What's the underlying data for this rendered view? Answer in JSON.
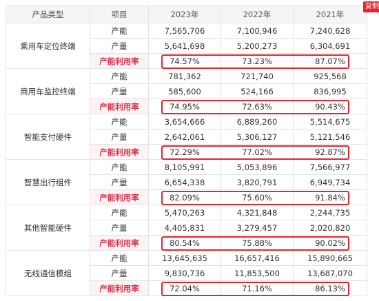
{
  "button": "复制",
  "table": {
    "header": [
      "产品类型",
      "项目",
      "2023年",
      "2022年",
      "2021年"
    ],
    "groups": [
      {
        "name": "乘用车定位终端",
        "rows": [
          [
            "产能",
            "7,565,706",
            "7,100,946",
            "7,240,628"
          ],
          [
            "产量",
            "5,641,698",
            "5,200,273",
            "6,304,691"
          ],
          [
            "产能利用率",
            "74.57%",
            "73.23%",
            "87.07%"
          ]
        ]
      },
      {
        "name": "商用车监控终端",
        "rows": [
          [
            "产能",
            "781,362",
            "721,740",
            "925,568"
          ],
          [
            "产量",
            "585,600",
            "524,166",
            "836,995"
          ],
          [
            "产能利用率",
            "74.95%",
            "72.63%",
            "90.43%"
          ]
        ]
      },
      {
        "name": "智能支付硬件",
        "rows": [
          [
            "产能",
            "3,654,666",
            "6,889,260",
            "5,514,675"
          ],
          [
            "产量",
            "2,642,061",
            "5,306,127",
            "5,121,546"
          ],
          [
            "产能利用率",
            "72.29%",
            "77.02%",
            "92.87%"
          ]
        ]
      },
      {
        "name": "智慧出行组件",
        "rows": [
          [
            "产能",
            "8,105,991",
            "5,053,896",
            "7,566,977"
          ],
          [
            "产量",
            "6,654,338",
            "3,820,791",
            "6,949,734"
          ],
          [
            "产能利用率",
            "82.09%",
            "75.60%",
            "91.84%"
          ]
        ]
      },
      {
        "name": "其他智能硬件",
        "rows": [
          [
            "产能",
            "5,470,263",
            "4,321,848",
            "2,244,735"
          ],
          [
            "产量",
            "4,405,831",
            "3,279,457",
            "2,020,820"
          ],
          [
            "产能利用率",
            "80.54%",
            "75.88%",
            "90.02%"
          ]
        ]
      },
      {
        "name": "无线通信模组",
        "rows": [
          [
            "产能",
            "13,645,635",
            "16,657,416",
            "15,890,665"
          ],
          [
            "产量",
            "9,830,736",
            "11,853,500",
            "13,687,070"
          ],
          [
            "产能利用率",
            "72.04%",
            "71.16%",
            "86.13%"
          ]
        ]
      }
    ]
  }
}
